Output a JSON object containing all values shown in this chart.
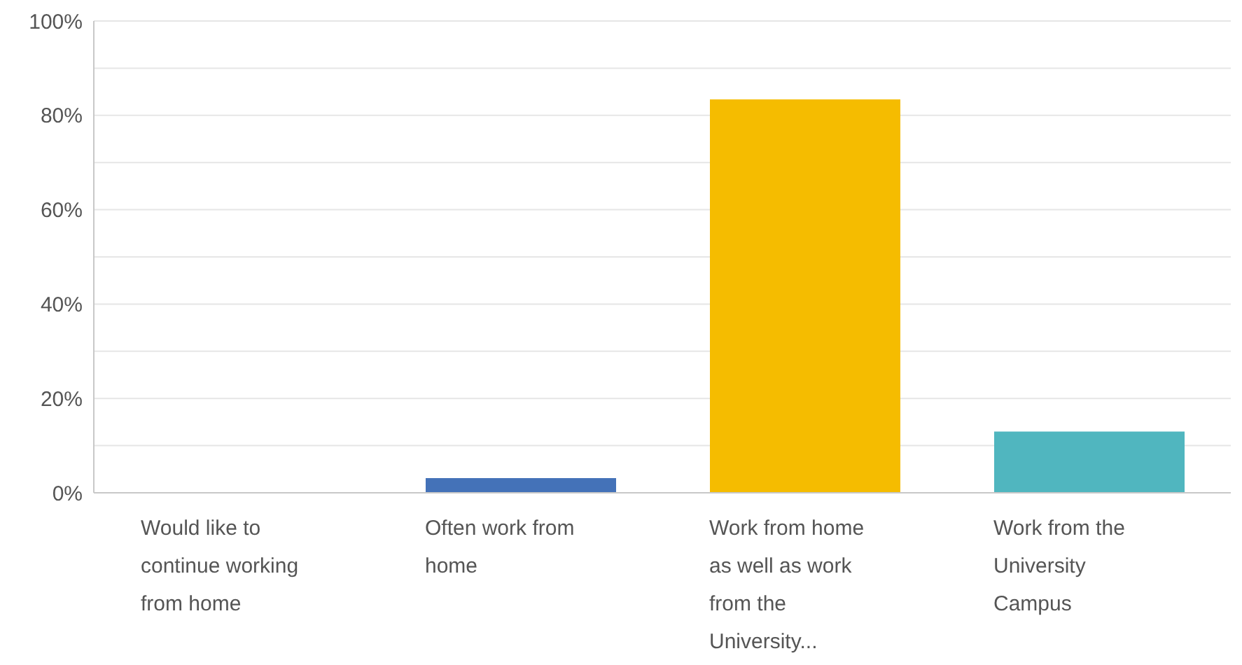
{
  "chart_data": {
    "type": "bar",
    "categories": [
      "Would like to continue working from home",
      "Often work from home",
      "Work from home as well as work from the University...",
      "Work from the University Campus"
    ],
    "values": [
      0,
      3.1,
      83.4,
      13.0
    ],
    "colors": [
      "#4472b8",
      "#4472b8",
      "#f5bc00",
      "#50b6bf"
    ],
    "ylim": [
      0,
      100
    ],
    "yticks": [
      {
        "value": 0,
        "label": "0%"
      },
      {
        "value": 10,
        "label": null
      },
      {
        "value": 20,
        "label": "20%"
      },
      {
        "value": 30,
        "label": null
      },
      {
        "value": 40,
        "label": "40%"
      },
      {
        "value": 50,
        "label": null
      },
      {
        "value": 60,
        "label": "60%"
      },
      {
        "value": 70,
        "label": null
      },
      {
        "value": 80,
        "label": "80%"
      },
      {
        "value": 90,
        "label": null
      },
      {
        "value": 100,
        "label": "100%"
      }
    ],
    "grid": true
  }
}
